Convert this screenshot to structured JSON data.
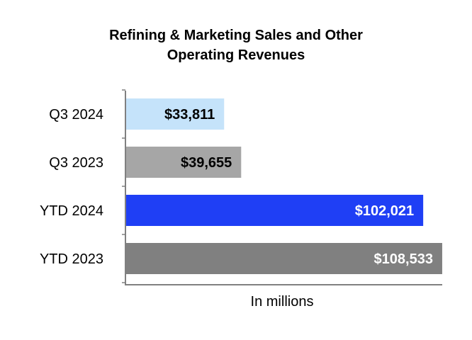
{
  "chart_data": {
    "type": "bar",
    "orientation": "horizontal",
    "title_lines": [
      "Refining & Marketing Sales and Other",
      "Operating Revenues"
    ],
    "xlabel": "In millions",
    "ylabel": "",
    "categories": [
      "Q3 2024",
      "Q3 2023",
      "YTD 2024",
      "YTD 2023"
    ],
    "values": [
      33811,
      39655,
      102021,
      108533
    ],
    "value_labels": [
      "$33,811",
      "$39,655",
      "$102,021",
      "$108,533"
    ],
    "colors": [
      "#c5e3fa",
      "#a6a6a6",
      "#1f3ff5",
      "#808080"
    ],
    "label_colors": [
      "#000000",
      "#000000",
      "#ffffff",
      "#ffffff"
    ],
    "xlim": [
      0,
      110000
    ],
    "grid": false,
    "legend": "none"
  }
}
